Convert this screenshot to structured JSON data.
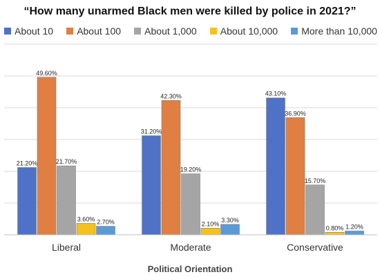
{
  "chart_data": {
    "type": "bar",
    "title": "“How many unarmed Black men were killed by police in 2021?”",
    "xlabel": "Political Orientation",
    "ylabel": "",
    "categories": [
      "Liberal",
      "Moderate",
      "Conservative"
    ],
    "series": [
      {
        "name": "About 10",
        "color": "#4f72c6",
        "values": [
          21.2,
          31.2,
          43.1
        ],
        "labels": [
          "21.20%",
          "31.20%",
          "43.10%"
        ]
      },
      {
        "name": "About 100",
        "color": "#e07f42",
        "values": [
          49.6,
          42.3,
          36.9
        ],
        "labels": [
          "49.60%",
          "42.30%",
          "36.90%"
        ]
      },
      {
        "name": "About 1,000",
        "color": "#a5a5a5",
        "values": [
          21.7,
          19.2,
          15.7
        ],
        "labels": [
          "21.70%",
          "19.20%",
          "15.70%"
        ]
      },
      {
        "name": "About 10,000",
        "color": "#f4c21b",
        "values": [
          3.6,
          2.1,
          0.8
        ],
        "labels": [
          "3.60%",
          "2.10%",
          "0.80%"
        ]
      },
      {
        "name": "More than 10,000",
        "color": "#5b9bd5",
        "values": [
          2.7,
          3.3,
          1.2
        ],
        "labels": [
          "2.70%",
          "3.30%",
          "1.20%"
        ]
      }
    ],
    "ylim": [
      0,
      60
    ],
    "grid": true,
    "legend_position": "top"
  }
}
